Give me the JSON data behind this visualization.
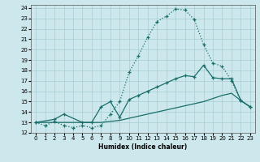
{
  "xlabel": "Humidex (Indice chaleur)",
  "bg_color": "#cce8ec",
  "grid_color": "#a8cdd4",
  "line_color": "#1a6e6a",
  "xlim": [
    -0.5,
    23.5
  ],
  "ylim": [
    12,
    24.3
  ],
  "xticks": [
    0,
    1,
    2,
    3,
    4,
    5,
    6,
    7,
    8,
    9,
    10,
    11,
    12,
    13,
    14,
    15,
    16,
    17,
    18,
    19,
    20,
    21,
    22,
    23
  ],
  "yticks": [
    12,
    13,
    14,
    15,
    16,
    17,
    18,
    19,
    20,
    21,
    22,
    23,
    24
  ],
  "line1_x": [
    0,
    1,
    2,
    3,
    4,
    5,
    6,
    7,
    8,
    9,
    10,
    11,
    12,
    13,
    14,
    15,
    16,
    17,
    18,
    19,
    20,
    21,
    22,
    23
  ],
  "line1_y": [
    13.0,
    12.7,
    13.1,
    12.7,
    12.5,
    12.7,
    12.5,
    12.7,
    13.8,
    15.0,
    17.8,
    19.4,
    21.2,
    22.7,
    23.2,
    23.9,
    23.8,
    22.9,
    20.5,
    18.7,
    18.4,
    17.0,
    15.1,
    14.5
  ],
  "line2_x": [
    0,
    2,
    3,
    5,
    6,
    7,
    8,
    9,
    10,
    11,
    12,
    13,
    14,
    15,
    16,
    17,
    18,
    19,
    20,
    21,
    22,
    23
  ],
  "line2_y": [
    13.0,
    13.3,
    13.8,
    13.0,
    13.0,
    14.5,
    15.0,
    13.5,
    15.2,
    15.6,
    16.0,
    16.4,
    16.8,
    17.2,
    17.5,
    17.4,
    18.5,
    17.3,
    17.2,
    17.2,
    15.1,
    14.5
  ],
  "line3_x": [
    0,
    1,
    2,
    3,
    4,
    5,
    6,
    7,
    8,
    9,
    10,
    11,
    12,
    13,
    14,
    15,
    16,
    17,
    18,
    19,
    20,
    21,
    22,
    23
  ],
  "line3_y": [
    13.0,
    13.0,
    13.0,
    13.0,
    13.0,
    13.0,
    13.0,
    13.0,
    13.1,
    13.2,
    13.4,
    13.6,
    13.8,
    14.0,
    14.2,
    14.4,
    14.6,
    14.8,
    15.0,
    15.3,
    15.6,
    15.8,
    15.1,
    14.5
  ]
}
